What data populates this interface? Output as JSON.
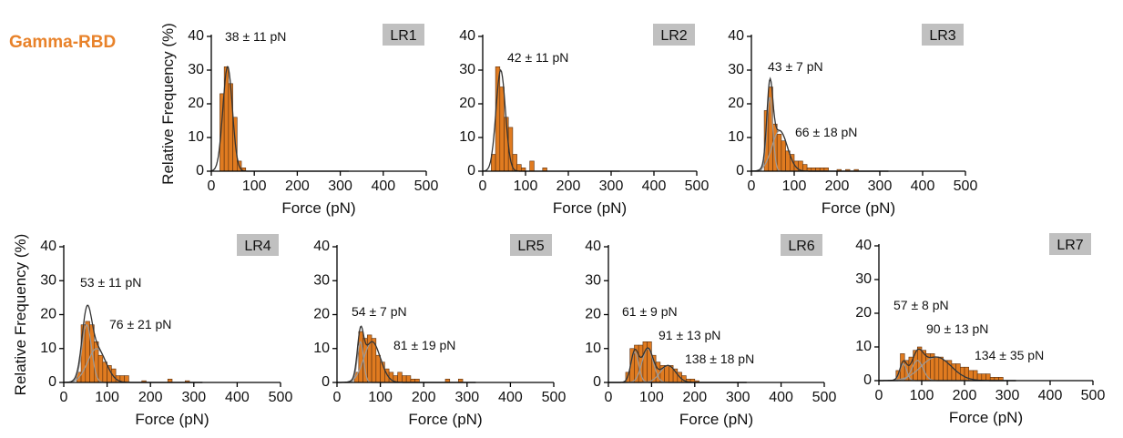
{
  "figure_title": "Gamma-RBD",
  "chart_data": [
    {
      "type": "histogram",
      "panel_label": "LR1",
      "x_label": "Force (pN)",
      "y_label": "Relative Frequency (%)",
      "bins": [
        0,
        10,
        20,
        30,
        40,
        50,
        60,
        70,
        80,
        90,
        100,
        110,
        120,
        130,
        140,
        150,
        160,
        170,
        180,
        190,
        200,
        210,
        220,
        230,
        240,
        250,
        260,
        270,
        280,
        290,
        300
      ],
      "values": [
        0,
        0,
        23,
        31,
        26,
        16,
        3,
        1,
        0,
        0,
        0,
        0,
        0,
        0,
        0,
        0,
        0,
        0,
        0,
        0,
        0,
        0,
        0,
        0,
        0,
        0,
        0,
        0,
        0,
        0
      ],
      "fits": [
        {
          "mean": 38,
          "sd": 11,
          "peak": 31,
          "label": "38 ± 11 pN"
        }
      ],
      "color": "#e07b20",
      "xlim": [
        0,
        500
      ],
      "ylim": [
        0,
        40
      ],
      "xticks": [
        0,
        100,
        200,
        300,
        400,
        500
      ],
      "yticks": [
        0,
        10,
        20,
        30,
        40
      ]
    },
    {
      "type": "histogram",
      "panel_label": "LR2",
      "x_label": "Force (pN)",
      "bins": [
        0,
        10,
        20,
        30,
        40,
        50,
        60,
        70,
        80,
        90,
        100,
        110,
        120,
        130,
        140,
        150,
        160,
        170,
        180,
        190,
        200,
        210,
        220,
        230,
        240,
        250,
        260,
        270,
        280,
        290,
        300
      ],
      "values": [
        0,
        0,
        5,
        31,
        25,
        16,
        13,
        5,
        2,
        1,
        0,
        3,
        0,
        0,
        1,
        0,
        0,
        0,
        0,
        0,
        0,
        0,
        0,
        0,
        0,
        0,
        0,
        0,
        0,
        0
      ],
      "fits": [
        {
          "mean": 42,
          "sd": 11,
          "peak": 30,
          "label": "42 ± 11 pN"
        }
      ],
      "color": "#e07b20",
      "xlim": [
        0,
        500
      ],
      "ylim": [
        0,
        40
      ],
      "xticks": [
        0,
        100,
        200,
        300,
        400,
        500
      ],
      "yticks": [
        0,
        10,
        20,
        30,
        40
      ]
    },
    {
      "type": "histogram",
      "panel_label": "LR3",
      "x_label": "Force (pN)",
      "bins": [
        0,
        10,
        20,
        30,
        40,
        50,
        60,
        70,
        80,
        90,
        100,
        110,
        120,
        130,
        140,
        150,
        160,
        170,
        180,
        190,
        200,
        210,
        220,
        230,
        240,
        250,
        260,
        270,
        280,
        290,
        300
      ],
      "values": [
        0,
        0,
        0,
        18,
        25,
        14,
        11,
        9,
        6,
        5,
        3,
        3,
        2,
        1,
        1,
        1,
        1,
        1,
        0,
        0,
        0.5,
        0,
        0.5,
        0,
        0.5,
        0,
        0,
        0,
        0,
        0
      ],
      "fits": [
        {
          "mean": 43,
          "sd": 7,
          "peak": 22,
          "label": "43 ± 7 pN"
        },
        {
          "mean": 66,
          "sd": 18,
          "peak": 12,
          "label": "66 ± 18 pN"
        }
      ],
      "color": "#e07b20",
      "xlim": [
        0,
        500
      ],
      "ylim": [
        0,
        40
      ],
      "xticks": [
        0,
        100,
        200,
        300,
        400,
        500
      ],
      "yticks": [
        0,
        10,
        20,
        30,
        40
      ]
    },
    {
      "type": "histogram",
      "panel_label": "LR4",
      "x_label": "Force (pN)",
      "y_label": "Relative Frequency (%)",
      "bins": [
        0,
        10,
        20,
        30,
        40,
        50,
        60,
        70,
        80,
        90,
        100,
        110,
        120,
        130,
        140,
        150,
        160,
        170,
        180,
        190,
        200,
        210,
        220,
        230,
        240,
        250,
        260,
        270,
        280,
        290,
        300
      ],
      "values": [
        0,
        0,
        0,
        3,
        17,
        18,
        17,
        12,
        8,
        6,
        5,
        4,
        2,
        2,
        2,
        0,
        0,
        0,
        0.5,
        0,
        0,
        0,
        0,
        0,
        1,
        0,
        0,
        0,
        0.5,
        0
      ],
      "fits": [
        {
          "mean": 53,
          "sd": 11,
          "peak": 17,
          "label": "53 ± 11 pN"
        },
        {
          "mean": 76,
          "sd": 21,
          "peak": 10,
          "label": "76 ± 21 pN"
        }
      ],
      "color": "#e07b20",
      "xlim": [
        0,
        500
      ],
      "ylim": [
        0,
        40
      ],
      "xticks": [
        0,
        100,
        200,
        300,
        400,
        500
      ],
      "yticks": [
        0,
        10,
        20,
        30,
        40
      ]
    },
    {
      "type": "histogram",
      "panel_label": "LR5",
      "x_label": "Force (pN)",
      "bins": [
        0,
        10,
        20,
        30,
        40,
        50,
        60,
        70,
        80,
        90,
        100,
        110,
        120,
        130,
        140,
        150,
        160,
        170,
        180,
        190,
        200,
        210,
        220,
        230,
        240,
        250,
        260,
        270,
        280,
        290,
        300
      ],
      "values": [
        0,
        0,
        0,
        0,
        3,
        15,
        13,
        14,
        13,
        8,
        6,
        4,
        3,
        2,
        3,
        2,
        2,
        1,
        1,
        0,
        0,
        0,
        0,
        0,
        0,
        1,
        0,
        0,
        1,
        0
      ],
      "fits": [
        {
          "mean": 54,
          "sd": 7,
          "peak": 12,
          "label": "54 ± 7 pN"
        },
        {
          "mean": 81,
          "sd": 19,
          "peak": 12,
          "label": "81 ± 19 pN"
        }
      ],
      "color": "#e07b20",
      "xlim": [
        0,
        500
      ],
      "ylim": [
        0,
        40
      ],
      "xticks": [
        0,
        100,
        200,
        300,
        400,
        500
      ],
      "yticks": [
        0,
        10,
        20,
        30,
        40
      ]
    },
    {
      "type": "histogram",
      "panel_label": "LR6",
      "x_label": "Force (pN)",
      "bins": [
        0,
        10,
        20,
        30,
        40,
        50,
        60,
        70,
        80,
        90,
        100,
        110,
        120,
        130,
        140,
        150,
        160,
        170,
        180,
        190,
        200,
        210,
        220,
        230,
        240,
        250,
        260,
        270,
        280,
        290,
        300
      ],
      "values": [
        0,
        0,
        0,
        0,
        3,
        10,
        11,
        11,
        12,
        12,
        8,
        6,
        5,
        5,
        5,
        4,
        3,
        2,
        1,
        1,
        0.5,
        0,
        0,
        0,
        0,
        0,
        0,
        0,
        0,
        0
      ],
      "fits": [
        {
          "mean": 61,
          "sd": 9,
          "peak": 9,
          "label": "61 ± 9 pN"
        },
        {
          "mean": 91,
          "sd": 13,
          "peak": 10,
          "label": "91 ± 13 pN"
        },
        {
          "mean": 138,
          "sd": 18,
          "peak": 5,
          "label": "138 ± 18 pN"
        }
      ],
      "color": "#e07b20",
      "xlim": [
        0,
        500
      ],
      "ylim": [
        0,
        40
      ],
      "xticks": [
        0,
        100,
        200,
        300,
        400,
        500
      ],
      "yticks": [
        0,
        10,
        20,
        30,
        40
      ]
    },
    {
      "type": "histogram",
      "panel_label": "LR7",
      "x_label": "Force (pN)",
      "bins": [
        0,
        10,
        20,
        30,
        40,
        50,
        60,
        70,
        80,
        90,
        100,
        110,
        120,
        130,
        140,
        150,
        160,
        170,
        180,
        190,
        200,
        210,
        220,
        230,
        240,
        250,
        260,
        270,
        280,
        290,
        300
      ],
      "values": [
        0,
        0,
        0,
        0,
        3,
        8,
        6,
        7,
        9,
        10,
        9,
        8,
        8,
        7,
        7,
        6,
        6,
        5,
        5,
        4,
        4,
        3,
        3,
        2,
        2,
        2,
        1,
        1,
        1,
        0
      ],
      "fits": [
        {
          "mean": 57,
          "sd": 8,
          "peak": 5,
          "label": "57 ± 8 pN"
        },
        {
          "mean": 90,
          "sd": 13,
          "peak": 6,
          "label": "90 ± 13 pN"
        },
        {
          "mean": 134,
          "sd": 35,
          "peak": 7,
          "label": "134 ± 35 pN"
        }
      ],
      "color": "#e07b20",
      "xlim": [
        0,
        500
      ],
      "ylim": [
        0,
        40
      ],
      "xticks": [
        0,
        100,
        200,
        300,
        400,
        500
      ],
      "yticks": [
        0,
        10,
        20,
        30,
        40
      ]
    }
  ]
}
